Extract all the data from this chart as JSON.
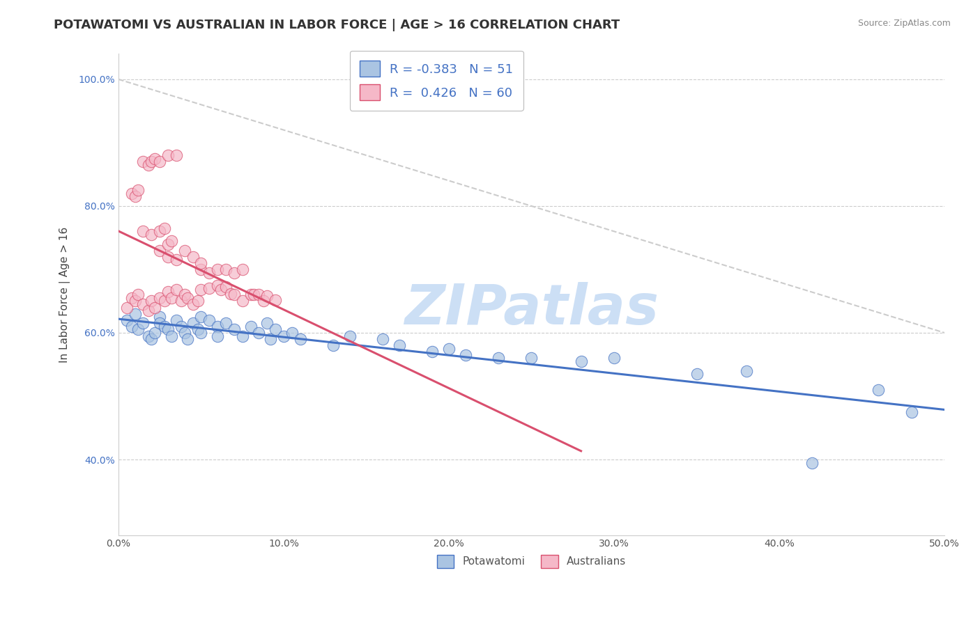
{
  "title": "POTAWATOMI VS AUSTRALIAN IN LABOR FORCE | AGE > 16 CORRELATION CHART",
  "source_text": "Source: ZipAtlas.com",
  "ylabel": "In Labor Force | Age > 16",
  "legend_label_blue": "Potawatomi",
  "legend_label_pink": "Australians",
  "R_blue": -0.383,
  "N_blue": 51,
  "R_pink": 0.426,
  "N_pink": 60,
  "xlim": [
    0.0,
    0.5
  ],
  "ylim": [
    0.28,
    1.04
  ],
  "xticks": [
    0.0,
    0.1,
    0.2,
    0.3,
    0.4,
    0.5
  ],
  "xtick_labels": [
    "0.0%",
    "10.0%",
    "20.0%",
    "30.0%",
    "40.0%",
    "50.0%"
  ],
  "yticks": [
    0.4,
    0.6,
    0.8,
    1.0
  ],
  "ytick_labels": [
    "40.0%",
    "60.0%",
    "80.0%",
    "100.0%"
  ],
  "color_blue": "#aac4e2",
  "color_pink": "#f5b8c8",
  "trendline_blue": "#4472c4",
  "trendline_pink": "#d94f6e",
  "trendline_dashed_color": "#cccccc",
  "watermark_text": "ZIPatlas",
  "watermark_color": "#ccdff5",
  "background_color": "#ffffff",
  "grid_color": "#cccccc",
  "title_fontsize": 13,
  "axis_label_fontsize": 11,
  "tick_fontsize": 10,
  "blue_scatter_x": [
    0.005,
    0.008,
    0.01,
    0.012,
    0.015,
    0.018,
    0.02,
    0.022,
    0.025,
    0.025,
    0.028,
    0.03,
    0.032,
    0.035,
    0.038,
    0.04,
    0.042,
    0.045,
    0.048,
    0.05,
    0.05,
    0.055,
    0.06,
    0.06,
    0.065,
    0.07,
    0.075,
    0.08,
    0.085,
    0.09,
    0.092,
    0.095,
    0.1,
    0.105,
    0.11,
    0.13,
    0.14,
    0.16,
    0.17,
    0.19,
    0.2,
    0.21,
    0.23,
    0.25,
    0.28,
    0.3,
    0.35,
    0.38,
    0.42,
    0.46,
    0.48
  ],
  "blue_scatter_y": [
    0.62,
    0.61,
    0.63,
    0.605,
    0.615,
    0.595,
    0.59,
    0.6,
    0.625,
    0.615,
    0.61,
    0.605,
    0.595,
    0.62,
    0.61,
    0.6,
    0.59,
    0.615,
    0.605,
    0.625,
    0.6,
    0.62,
    0.61,
    0.595,
    0.615,
    0.605,
    0.595,
    0.61,
    0.6,
    0.615,
    0.59,
    0.605,
    0.595,
    0.6,
    0.59,
    0.58,
    0.595,
    0.59,
    0.58,
    0.57,
    0.575,
    0.565,
    0.56,
    0.56,
    0.555,
    0.56,
    0.535,
    0.54,
    0.395,
    0.51,
    0.475
  ],
  "pink_scatter_x": [
    0.005,
    0.008,
    0.01,
    0.012,
    0.015,
    0.018,
    0.02,
    0.022,
    0.025,
    0.028,
    0.03,
    0.032,
    0.035,
    0.038,
    0.04,
    0.042,
    0.045,
    0.048,
    0.05,
    0.055,
    0.06,
    0.062,
    0.065,
    0.068,
    0.07,
    0.075,
    0.08,
    0.082,
    0.085,
    0.088,
    0.09,
    0.095,
    0.05,
    0.055,
    0.06,
    0.065,
    0.07,
    0.075,
    0.025,
    0.03,
    0.035,
    0.04,
    0.045,
    0.05,
    0.015,
    0.02,
    0.025,
    0.028,
    0.03,
    0.032,
    0.008,
    0.01,
    0.012,
    0.015,
    0.018,
    0.02,
    0.022,
    0.025,
    0.03,
    0.035
  ],
  "pink_scatter_y": [
    0.64,
    0.655,
    0.65,
    0.66,
    0.645,
    0.635,
    0.65,
    0.64,
    0.655,
    0.65,
    0.665,
    0.655,
    0.668,
    0.65,
    0.66,
    0.655,
    0.645,
    0.65,
    0.668,
    0.67,
    0.675,
    0.668,
    0.672,
    0.662,
    0.66,
    0.65,
    0.66,
    0.66,
    0.66,
    0.65,
    0.658,
    0.652,
    0.7,
    0.695,
    0.7,
    0.7,
    0.695,
    0.7,
    0.73,
    0.72,
    0.715,
    0.73,
    0.72,
    0.71,
    0.76,
    0.755,
    0.76,
    0.765,
    0.74,
    0.745,
    0.82,
    0.815,
    0.825,
    0.87,
    0.865,
    0.87,
    0.875,
    0.87,
    0.88,
    0.88
  ],
  "dashed_line_x": [
    0.0,
    0.5
  ],
  "dashed_line_y": [
    1.0,
    0.6
  ]
}
